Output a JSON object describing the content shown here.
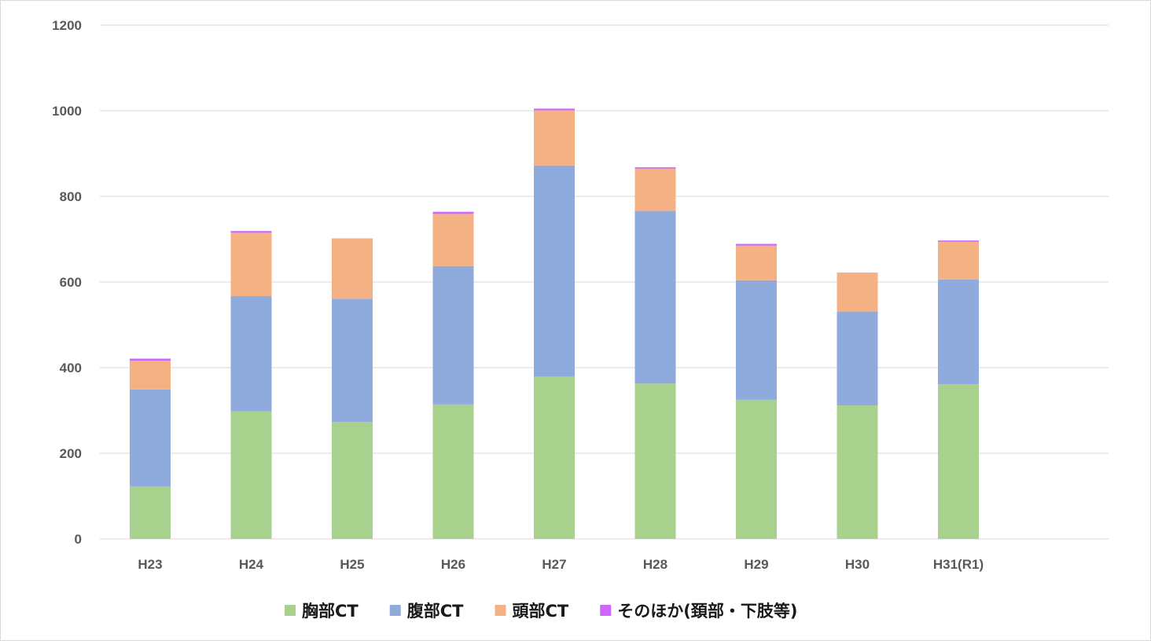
{
  "chart_data": {
    "type": "bar",
    "stacked": true,
    "title": "",
    "xlabel": "",
    "ylabel": "",
    "ylim": [
      0,
      1200
    ],
    "yticks": [
      "0",
      "200",
      "400",
      "600",
      "800",
      "1000",
      "1200"
    ],
    "grid": true,
    "legend_position": "bottom",
    "categories": [
      "H23",
      "H24",
      "H25",
      "H26",
      "H27",
      "H28",
      "H29",
      "H30",
      "H31(R1)"
    ],
    "series": [
      {
        "name": "胸部CT",
        "color": "#a9d18e",
        "values": [
          123,
          298,
          273,
          314,
          379,
          363,
          325,
          312,
          361
        ]
      },
      {
        "name": "腹部CT",
        "color": "#8faadc",
        "values": [
          226,
          269,
          288,
          323,
          493,
          403,
          279,
          219,
          245
        ]
      },
      {
        "name": "頭部CT",
        "color": "#f4b183",
        "values": [
          67,
          148,
          141,
          122,
          129,
          99,
          81,
          91,
          88
        ]
      },
      {
        "name": "そのほか(頚部・下肢等)",
        "color": "#cc66ff",
        "values": [
          5,
          4,
          0,
          5,
          4,
          3,
          4,
          0,
          3
        ]
      }
    ]
  }
}
